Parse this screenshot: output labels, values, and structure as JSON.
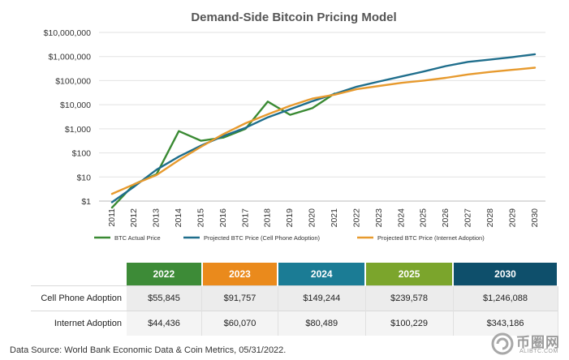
{
  "chart_data": {
    "type": "line",
    "title": "Demand-Side Bitcoin Pricing Model",
    "xlabel": "",
    "ylabel": "",
    "yscale": "log",
    "ylim": [
      1,
      10000000
    ],
    "yticks": [
      1,
      10,
      100,
      1000,
      10000,
      100000,
      1000000,
      10000000
    ],
    "ytick_labels": [
      "$1",
      "$10",
      "$100",
      "$1,000",
      "$10,000",
      "$100,000",
      "$1,000,000",
      "$10,000,000"
    ],
    "x": [
      "2011",
      "2012",
      "2013",
      "2014",
      "2015",
      "2016",
      "2017",
      "2018",
      "2019",
      "2020",
      "2021",
      "2022",
      "2023",
      "2024",
      "2025",
      "2026",
      "2027",
      "2028",
      "2029",
      "2030"
    ],
    "grid": true,
    "legend": "bottom",
    "series": [
      {
        "name": "BTC Actual Price",
        "color": "#3a8a33",
        "values": [
          0.3,
          5,
          13,
          800,
          320,
          430,
          1000,
          13500,
          3800,
          7200,
          29000,
          null,
          null,
          null,
          null,
          null,
          null,
          null,
          null,
          null
        ]
      },
      {
        "name": "Projected BTC Price (Cell Phone Adoption)",
        "color": "#1f6e8c",
        "values": [
          0.9,
          4,
          20,
          70,
          200,
          500,
          1100,
          3000,
          6500,
          14000,
          28000,
          55845,
          91757,
          149244,
          239578,
          400000,
          600000,
          750000,
          950000,
          1246088
        ]
      },
      {
        "name": "Projected BTC Price (Internet Adoption)",
        "color": "#e79a2e",
        "values": [
          2,
          5,
          12,
          50,
          180,
          600,
          1700,
          4000,
          9000,
          18000,
          26000,
          44436,
          60070,
          80489,
          100229,
          130000,
          180000,
          230000,
          280000,
          343186
        ]
      }
    ]
  },
  "table": {
    "headers": [
      {
        "label": "2022",
        "color": "#3d8b37"
      },
      {
        "label": "2023",
        "color": "#ea8a1c"
      },
      {
        "label": "2024",
        "color": "#1b7c95"
      },
      {
        "label": "2025",
        "color": "#7ba52c"
      },
      {
        "label": "2030",
        "color": "#0e4f6b"
      }
    ],
    "rows": [
      {
        "label": "Cell Phone Adoption",
        "values": [
          "$55,845",
          "$91,757",
          "$149,244",
          "$239,578",
          "$1,246,088"
        ]
      },
      {
        "label": "Internet Adoption",
        "values": [
          "$44,436",
          "$60,070",
          "$80,489",
          "$100,229",
          "$343,186"
        ]
      }
    ]
  },
  "source": "Data Source: World Bank Economic Data & Coin Metrics, 05/31/2022.",
  "watermark": {
    "main": "币圈网",
    "sub": "ALIBTC.COM"
  }
}
